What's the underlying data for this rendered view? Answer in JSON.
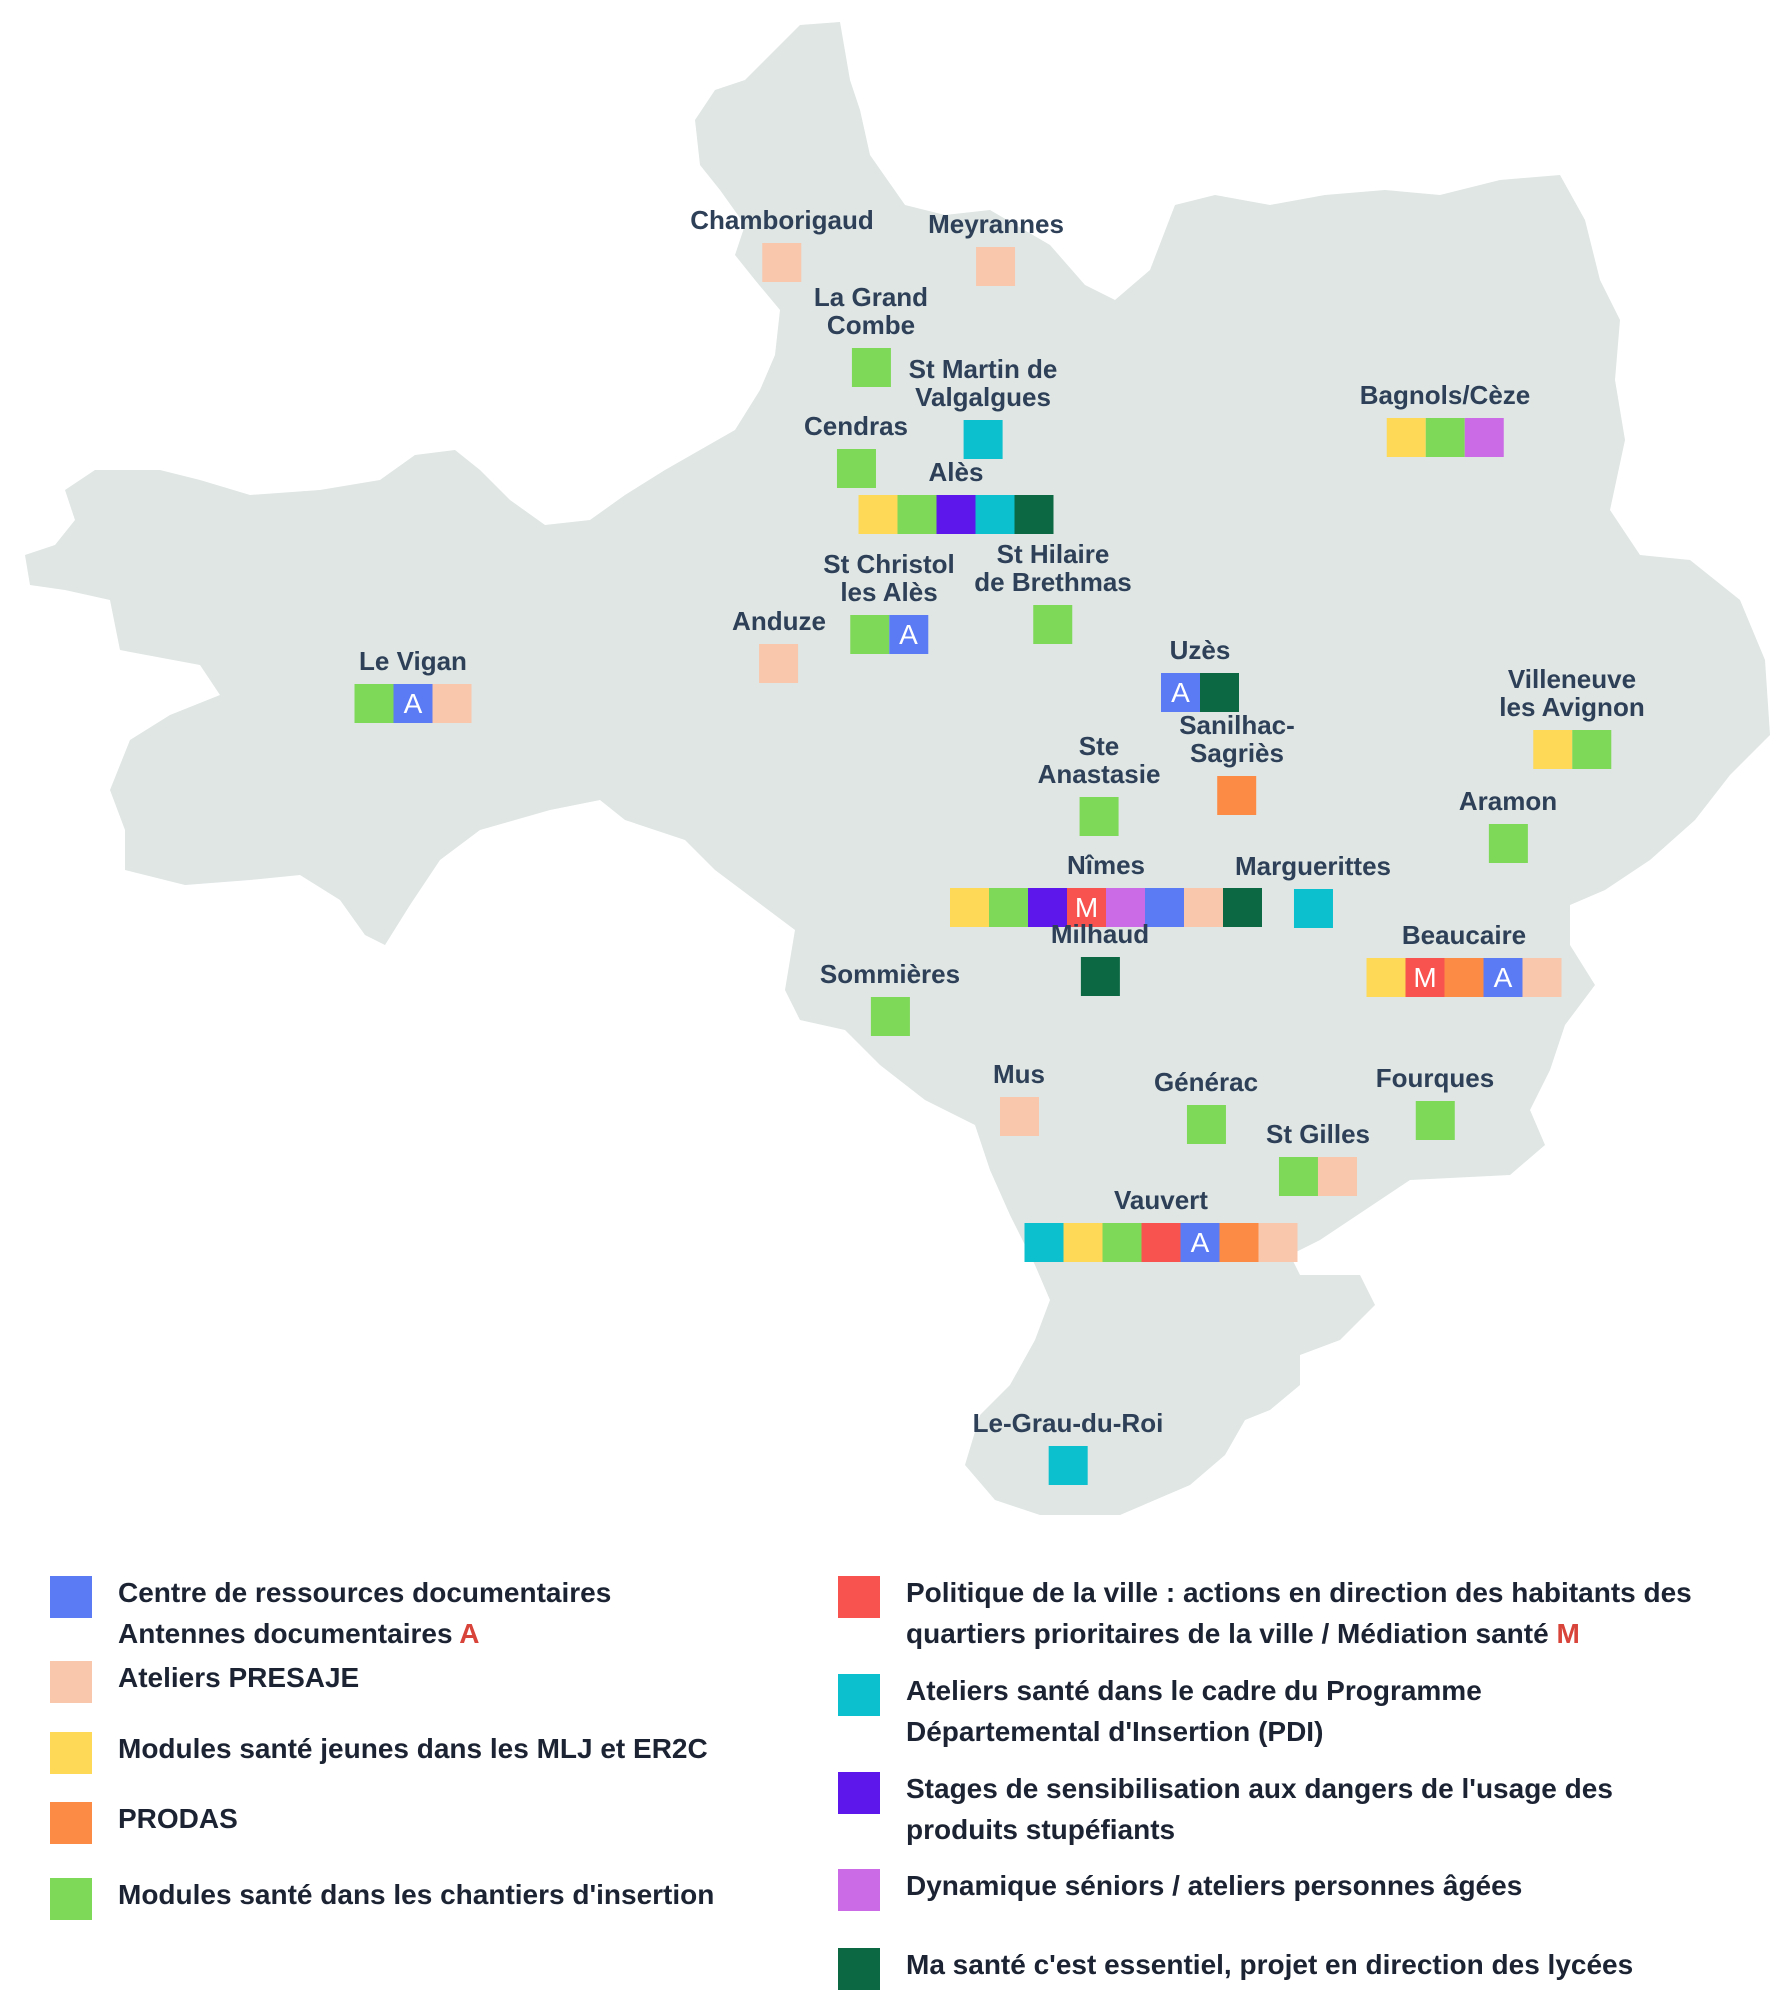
{
  "colors": {
    "map_fill": "#dfe6e4",
    "label_text": "#2e4057",
    "legend_text": "#1c2433",
    "marker_letter": "#d8433a"
  },
  "categories": {
    "centre": {
      "color": "#5b7bf5",
      "text": "Centre de ressources documentaires",
      "text2": "Antennes documentaires",
      "mark": "A"
    },
    "presaje": {
      "color": "#f9c7ab",
      "text": "Ateliers PRESAJE"
    },
    "mlj": {
      "color": "#fdd957",
      "text": "Modules santé jeunes dans les MLJ et ER2C"
    },
    "prodas": {
      "color": "#fc8c45",
      "text": "PRODAS"
    },
    "chantiers": {
      "color": "#7ed958",
      "text": "Modules santé dans les chantiers d'insertion"
    },
    "politique": {
      "color": "#f8534f",
      "text": "Politique de la ville : actions en direction des habitants des",
      "text2": "quartiers prioritaires de la ville / Médiation santé",
      "mark": "M"
    },
    "pdi": {
      "color": "#0cc0cd",
      "text": "Ateliers santé dans le cadre du Programme",
      "text2": "Départemental d'Insertion (PDI)"
    },
    "stages": {
      "color": "#5e17eb",
      "text": "Stages de sensibilisation aux dangers de l'usage des",
      "text2": "produits stupéfiants"
    },
    "seniors": {
      "color": "#cb6ce6",
      "text": "Dynamique séniors / ateliers personnes âgées"
    },
    "lycees": {
      "color": "#0b6842",
      "text": "Ma santé c'est essentiel, projet en direction des lycées"
    }
  },
  "places": [
    {
      "name": "Chamborigaud",
      "chips": [
        {
          "cat": "presaje"
        }
      ]
    },
    {
      "name": "Meyrannes",
      "chips": [
        {
          "cat": "presaje"
        }
      ]
    },
    {
      "name": "La Grand\nCombe",
      "chips": [
        {
          "cat": "chantiers"
        }
      ]
    },
    {
      "name": "St Martin de\nValgalgues",
      "chips": [
        {
          "cat": "pdi"
        }
      ]
    },
    {
      "name": "Cendras",
      "chips": [
        {
          "cat": "chantiers"
        }
      ]
    },
    {
      "name": "Alès",
      "chips": [
        {
          "cat": "mlj"
        },
        {
          "cat": "chantiers"
        },
        {
          "cat": "stages"
        },
        {
          "cat": "pdi"
        },
        {
          "cat": "lycees"
        }
      ]
    },
    {
      "name": "Bagnols/Cèze",
      "chips": [
        {
          "cat": "mlj"
        },
        {
          "cat": "chantiers"
        },
        {
          "cat": "seniors"
        }
      ]
    },
    {
      "name": "St Christol\nles Alès",
      "chips": [
        {
          "cat": "chantiers"
        },
        {
          "cat": "centre",
          "letter": "A"
        }
      ]
    },
    {
      "name": "St Hilaire\nde Brethmas",
      "chips": [
        {
          "cat": "chantiers"
        }
      ]
    },
    {
      "name": "Anduze",
      "chips": [
        {
          "cat": "presaje"
        }
      ]
    },
    {
      "name": "Le Vigan",
      "chips": [
        {
          "cat": "chantiers"
        },
        {
          "cat": "centre",
          "letter": "A"
        },
        {
          "cat": "presaje"
        }
      ]
    },
    {
      "name": "Uzès",
      "chips": [
        {
          "cat": "centre",
          "letter": "A"
        },
        {
          "cat": "lycees"
        }
      ]
    },
    {
      "name": "Villeneuve\nles Avignon",
      "chips": [
        {
          "cat": "mlj"
        },
        {
          "cat": "chantiers"
        }
      ]
    },
    {
      "name": "Sanilhac-\nSagriès",
      "chips": [
        {
          "cat": "prodas"
        }
      ]
    },
    {
      "name": "Ste\nAnastasie",
      "chips": [
        {
          "cat": "chantiers"
        }
      ]
    },
    {
      "name": "Aramon",
      "chips": [
        {
          "cat": "chantiers"
        }
      ]
    },
    {
      "name": "Nîmes",
      "chips": [
        {
          "cat": "mlj"
        },
        {
          "cat": "chantiers"
        },
        {
          "cat": "stages"
        },
        {
          "cat": "politique",
          "letter": "M"
        },
        {
          "cat": "seniors"
        },
        {
          "cat": "centre"
        },
        {
          "cat": "presaje"
        },
        {
          "cat": "lycees"
        }
      ]
    },
    {
      "name": "Marguerittes",
      "chips": [
        {
          "cat": "pdi"
        }
      ]
    },
    {
      "name": "Milhaud",
      "chips": [
        {
          "cat": "lycees"
        }
      ]
    },
    {
      "name": "Beaucaire",
      "chips": [
        {
          "cat": "mlj"
        },
        {
          "cat": "politique",
          "letter": "M"
        },
        {
          "cat": "prodas"
        },
        {
          "cat": "centre",
          "letter": "A"
        },
        {
          "cat": "presaje"
        }
      ]
    },
    {
      "name": "Sommières",
      "chips": [
        {
          "cat": "chantiers"
        }
      ]
    },
    {
      "name": "Mus",
      "chips": [
        {
          "cat": "presaje"
        }
      ]
    },
    {
      "name": "Générac",
      "chips": [
        {
          "cat": "chantiers"
        }
      ]
    },
    {
      "name": "Fourques",
      "chips": [
        {
          "cat": "chantiers"
        }
      ]
    },
    {
      "name": "St Gilles",
      "chips": [
        {
          "cat": "chantiers"
        },
        {
          "cat": "presaje"
        }
      ]
    },
    {
      "name": "Vauvert",
      "chips": [
        {
          "cat": "pdi"
        },
        {
          "cat": "mlj"
        },
        {
          "cat": "chantiers"
        },
        {
          "cat": "politique"
        },
        {
          "cat": "centre",
          "letter": "A"
        },
        {
          "cat": "prodas"
        },
        {
          "cat": "presaje"
        }
      ]
    },
    {
      "name": "Le-Grau-du-Roi",
      "chips": [
        {
          "cat": "pdi"
        }
      ]
    }
  ],
  "legend": {
    "left": [
      "centre",
      "presaje",
      "mlj",
      "prodas",
      "chantiers"
    ],
    "right": [
      "politique",
      "pdi",
      "stages",
      "seniors",
      "lycees"
    ]
  }
}
